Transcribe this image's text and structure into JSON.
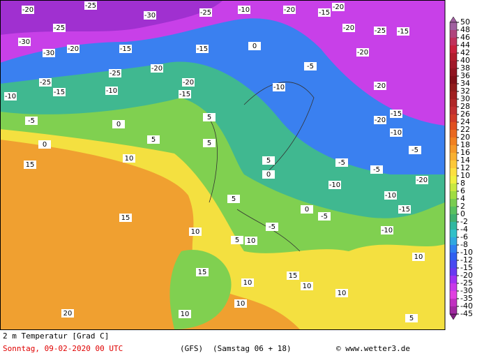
{
  "caption": "2 m Temperatur [Grad C]",
  "date": "Sonntag, 09-02-2020  00 UTC",
  "model": "(GFS)",
  "run": "(Samstag 06 + 18)",
  "source": "© www.wetter3.de",
  "legend": {
    "levels": [
      50,
      48,
      46,
      44,
      42,
      40,
      38,
      36,
      34,
      32,
      30,
      28,
      26,
      24,
      22,
      20,
      18,
      16,
      14,
      12,
      10,
      8,
      6,
      4,
      2,
      0,
      -2,
      -4,
      -6,
      -8,
      -10,
      -12,
      -15,
      -20,
      -25,
      -30,
      -35,
      -40,
      -45
    ],
    "colors": [
      "#a060a0",
      "#b0447c",
      "#c0305a",
      "#c8203c",
      "#b01c2c",
      "#a01828",
      "#901420",
      "#801018",
      "#901c1c",
      "#a02020",
      "#b02828",
      "#c03030",
      "#d03c28",
      "#e05020",
      "#e86820",
      "#f08020",
      "#f49828",
      "#f8b030",
      "#fcc838",
      "#fce040",
      "#f0f040",
      "#c8e840",
      "#a0dc40",
      "#78cc50",
      "#58c060",
      "#40b070",
      "#30b8a0",
      "#30c0c8",
      "#30a8e0",
      "#3080f0",
      "#3060f0",
      "#4848f0",
      "#6838f0",
      "#a030f0",
      "#c838e8",
      "#e040e0",
      "#c030c0",
      "#a028a0",
      "#802080"
    ]
  },
  "map_labels": [
    -20,
    -25,
    -30,
    -25,
    -10,
    -20,
    -15,
    -20,
    -20,
    -25,
    -15,
    -25,
    -30,
    -30,
    -20,
    -15,
    -15,
    0,
    -20,
    -25,
    -20,
    -25,
    -15,
    -10,
    -10,
    -15,
    -5,
    0,
    5,
    0,
    15,
    10,
    5,
    -10,
    -5,
    -20,
    -20,
    -15,
    -20,
    -10,
    -5,
    -5,
    -5,
    -20,
    -10,
    -10,
    -15,
    -10,
    15,
    10,
    5,
    10,
    15,
    10,
    15,
    10,
    10,
    10,
    10,
    5,
    20,
    10,
    -5,
    0,
    -5,
    5,
    5,
    0,
    5
  ]
}
